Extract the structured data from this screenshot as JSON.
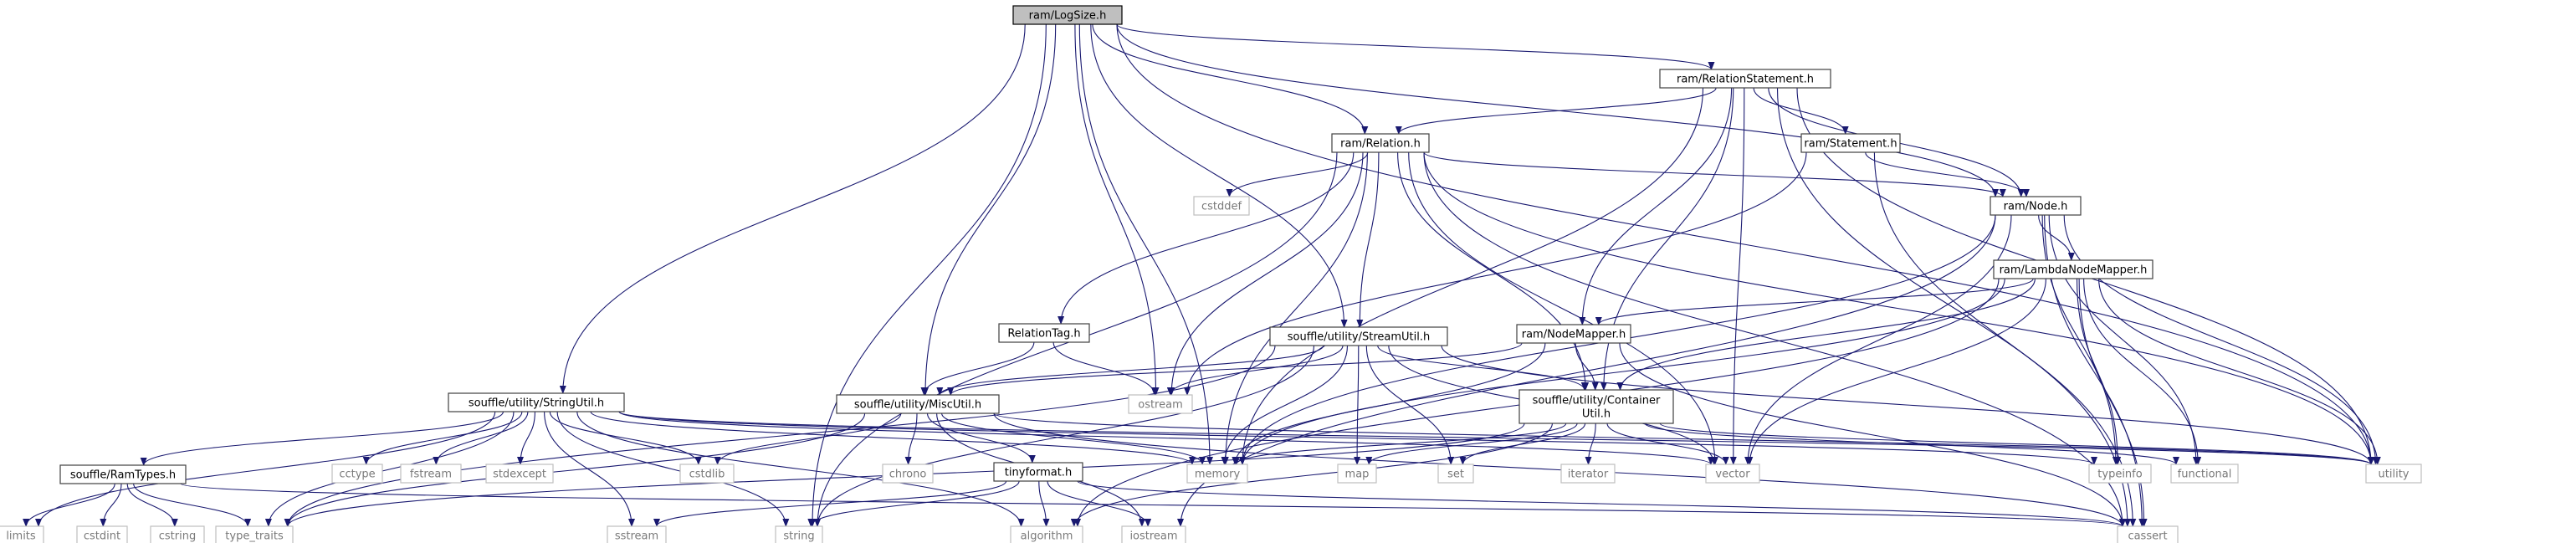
{
  "diagram": {
    "type": "include-dependency-graph",
    "colors": {
      "edge": "#191970",
      "root_fill": "#bfbfbf",
      "internal_border": "#404040",
      "external_border": "#bfbfbf",
      "external_text": "#7a7a7a"
    },
    "nodes": {
      "logsize": {
        "label": "ram/LogSize.h",
        "kind": "root"
      },
      "relstmt": {
        "label": "ram/RelationStatement.h",
        "kind": "internal"
      },
      "relation": {
        "label": "ram/Relation.h",
        "kind": "internal"
      },
      "statement": {
        "label": "ram/Statement.h",
        "kind": "internal"
      },
      "node": {
        "label": "ram/Node.h",
        "kind": "internal"
      },
      "lambda": {
        "label": "ram/LambdaNodeMapper.h",
        "kind": "internal"
      },
      "nodemapper": {
        "label": "ram/NodeMapper.h",
        "kind": "internal"
      },
      "reltag": {
        "label": "RelationTag.h",
        "kind": "internal"
      },
      "streamutil": {
        "label": "souffle/utility/StreamUtil.h",
        "kind": "internal"
      },
      "containerutil": {
        "label_lines": [
          "souffle/utility/Container",
          "Util.h"
        ],
        "kind": "internal"
      },
      "stringutil": {
        "label": "souffle/utility/StringUtil.h",
        "kind": "internal"
      },
      "miscutil": {
        "label": "souffle/utility/MiscUtil.h",
        "kind": "internal"
      },
      "ramtypes": {
        "label": "souffle/RamTypes.h",
        "kind": "internal"
      },
      "tinyformat": {
        "label": "tinyformat.h",
        "kind": "internal"
      },
      "cstddef": {
        "label": "cstddef",
        "kind": "external"
      },
      "ostream": {
        "label": "ostream",
        "kind": "external"
      },
      "chrono": {
        "label": "chrono",
        "kind": "external"
      },
      "memory": {
        "label": "memory",
        "kind": "external"
      },
      "map": {
        "label": "map",
        "kind": "external"
      },
      "set": {
        "label": "set",
        "kind": "external"
      },
      "iterator": {
        "label": "iterator",
        "kind": "external"
      },
      "vector": {
        "label": "vector",
        "kind": "external"
      },
      "typeinfo": {
        "label": "typeinfo",
        "kind": "external"
      },
      "functional": {
        "label": "functional",
        "kind": "external"
      },
      "utility": {
        "label": "utility",
        "kind": "external"
      },
      "cctype": {
        "label": "cctype",
        "kind": "external"
      },
      "fstream": {
        "label": "fstream",
        "kind": "external"
      },
      "stdexcept": {
        "label": "stdexcept",
        "kind": "external"
      },
      "cstdlib": {
        "label": "cstdlib",
        "kind": "external"
      },
      "limits": {
        "label": "limits",
        "kind": "external"
      },
      "cstdint": {
        "label": "cstdint",
        "kind": "external"
      },
      "cstring": {
        "label": "cstring",
        "kind": "external"
      },
      "type_traits": {
        "label": "type_traits",
        "kind": "external"
      },
      "sstream": {
        "label": "sstream",
        "kind": "external"
      },
      "string": {
        "label": "string",
        "kind": "external"
      },
      "algorithm": {
        "label": "algorithm",
        "kind": "external"
      },
      "iostream": {
        "label": "iostream",
        "kind": "external"
      },
      "cassert": {
        "label": "cassert",
        "kind": "external"
      }
    },
    "edges": [
      [
        "logsize",
        "relstmt"
      ],
      [
        "logsize",
        "relation"
      ],
      [
        "logsize",
        "node"
      ],
      [
        "logsize",
        "streamutil"
      ],
      [
        "logsize",
        "stringutil"
      ],
      [
        "logsize",
        "miscutil"
      ],
      [
        "logsize",
        "ostream"
      ],
      [
        "logsize",
        "memory"
      ],
      [
        "logsize",
        "string"
      ],
      [
        "logsize",
        "utility"
      ],
      [
        "relstmt",
        "relation"
      ],
      [
        "relstmt",
        "statement"
      ],
      [
        "relstmt",
        "node"
      ],
      [
        "relstmt",
        "nodemapper"
      ],
      [
        "relstmt",
        "containerutil"
      ],
      [
        "relstmt",
        "memory"
      ],
      [
        "relstmt",
        "vector"
      ],
      [
        "relstmt",
        "utility"
      ],
      [
        "relstmt",
        "cassert"
      ],
      [
        "relation",
        "reltag"
      ],
      [
        "relation",
        "node"
      ],
      [
        "relation",
        "streamutil"
      ],
      [
        "relation",
        "containerutil"
      ],
      [
        "relation",
        "cstddef"
      ],
      [
        "relation",
        "ostream"
      ],
      [
        "relation",
        "memory"
      ],
      [
        "relation",
        "string"
      ],
      [
        "relation",
        "vector"
      ],
      [
        "relation",
        "utility"
      ],
      [
        "relation",
        "cassert"
      ],
      [
        "statement",
        "node"
      ],
      [
        "statement",
        "ostream"
      ],
      [
        "statement",
        "cassert"
      ],
      [
        "node",
        "lambda"
      ],
      [
        "node",
        "memory"
      ],
      [
        "node",
        "vector"
      ],
      [
        "node",
        "typeinfo"
      ],
      [
        "node",
        "functional"
      ],
      [
        "node",
        "utility"
      ],
      [
        "node",
        "iostream"
      ],
      [
        "node",
        "cassert"
      ],
      [
        "lambda",
        "nodemapper"
      ],
      [
        "lambda",
        "containerutil"
      ],
      [
        "lambda",
        "memory"
      ],
      [
        "lambda",
        "vector"
      ],
      [
        "lambda",
        "typeinfo"
      ],
      [
        "lambda",
        "functional"
      ],
      [
        "lambda",
        "utility"
      ],
      [
        "lambda",
        "algorithm"
      ],
      [
        "lambda",
        "cassert"
      ],
      [
        "nodemapper",
        "miscutil"
      ],
      [
        "nodemapper",
        "containerutil"
      ],
      [
        "nodemapper",
        "memory"
      ],
      [
        "nodemapper",
        "cassert"
      ],
      [
        "reltag",
        "miscutil"
      ],
      [
        "reltag",
        "ostream"
      ],
      [
        "streamutil",
        "containerutil"
      ],
      [
        "streamutil",
        "miscutil"
      ],
      [
        "streamutil",
        "ostream"
      ],
      [
        "streamutil",
        "memory"
      ],
      [
        "streamutil",
        "map"
      ],
      [
        "streamutil",
        "set"
      ],
      [
        "streamutil",
        "vector"
      ],
      [
        "streamutil",
        "string"
      ],
      [
        "streamutil",
        "type_traits"
      ],
      [
        "streamutil",
        "utility"
      ],
      [
        "containerutil",
        "memory"
      ],
      [
        "containerutil",
        "map"
      ],
      [
        "containerutil",
        "set"
      ],
      [
        "containerutil",
        "iterator"
      ],
      [
        "containerutil",
        "vector"
      ],
      [
        "containerutil",
        "functional"
      ],
      [
        "containerutil",
        "utility"
      ],
      [
        "containerutil",
        "type_traits"
      ],
      [
        "containerutil",
        "algorithm"
      ],
      [
        "stringutil",
        "ramtypes"
      ],
      [
        "stringutil",
        "cctype"
      ],
      [
        "stringutil",
        "fstream"
      ],
      [
        "stringutil",
        "stdexcept"
      ],
      [
        "stringutil",
        "cstdlib"
      ],
      [
        "stringutil",
        "limits"
      ],
      [
        "stringutil",
        "type_traits"
      ],
      [
        "stringutil",
        "sstream"
      ],
      [
        "stringutil",
        "string"
      ],
      [
        "stringutil",
        "algorithm"
      ],
      [
        "stringutil",
        "memory"
      ],
      [
        "stringutil",
        "vector"
      ],
      [
        "stringutil",
        "typeinfo"
      ],
      [
        "stringutil",
        "utility"
      ],
      [
        "miscutil",
        "tinyformat"
      ],
      [
        "miscutil",
        "chrono"
      ],
      [
        "miscutil",
        "cstdlib"
      ],
      [
        "miscutil",
        "memory"
      ],
      [
        "miscutil",
        "iostream"
      ],
      [
        "miscutil",
        "cassert"
      ],
      [
        "miscutil",
        "utility"
      ],
      [
        "miscutil",
        "type_traits"
      ],
      [
        "ramtypes",
        "limits"
      ],
      [
        "ramtypes",
        "cstdint"
      ],
      [
        "ramtypes",
        "cstring"
      ],
      [
        "ramtypes",
        "type_traits"
      ],
      [
        "ramtypes",
        "cassert"
      ],
      [
        "tinyformat",
        "sstream"
      ],
      [
        "tinyformat",
        "string"
      ],
      [
        "tinyformat",
        "algorithm"
      ],
      [
        "tinyformat",
        "iostream"
      ],
      [
        "tinyformat",
        "cassert"
      ]
    ]
  }
}
